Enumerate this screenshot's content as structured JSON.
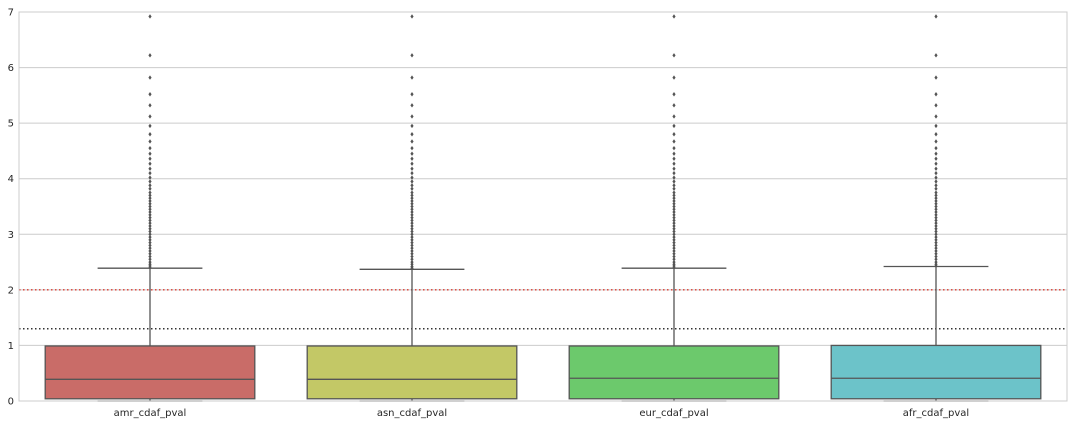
{
  "chart_data": {
    "type": "box",
    "categories": [
      "amr_cdaf_pval",
      "asn_cdaf_pval",
      "eur_cdaf_pval",
      "afr_cdaf_pval"
    ],
    "boxes": [
      {
        "name": "amr_cdaf_pval",
        "color": "#c96c68",
        "min": 0.0,
        "q1": 0.04,
        "median": 0.39,
        "q3": 0.99,
        "whisker_high": 2.39,
        "outliers": [
          2.4,
          2.43,
          2.46,
          2.5,
          2.55,
          2.6,
          2.65,
          2.7,
          2.75,
          2.8,
          2.85,
          2.9,
          2.95,
          3.0,
          3.05,
          3.1,
          3.15,
          3.2,
          3.25,
          3.3,
          3.35,
          3.4,
          3.45,
          3.5,
          3.55,
          3.6,
          3.65,
          3.7,
          3.75,
          3.82,
          3.88,
          3.95,
          4.02,
          4.1,
          4.18,
          4.27,
          4.36,
          4.45,
          4.55,
          4.67,
          4.8,
          4.95,
          5.12,
          5.32,
          5.52,
          5.82,
          6.22,
          6.92
        ]
      },
      {
        "name": "asn_cdaf_pval",
        "color": "#c3c866",
        "min": 0.0,
        "q1": 0.04,
        "median": 0.39,
        "q3": 0.99,
        "whisker_high": 2.37,
        "outliers": [
          2.39,
          2.42,
          2.46,
          2.5,
          2.55,
          2.6,
          2.65,
          2.7,
          2.75,
          2.8,
          2.85,
          2.9,
          2.95,
          3.0,
          3.05,
          3.1,
          3.15,
          3.2,
          3.25,
          3.3,
          3.35,
          3.4,
          3.45,
          3.5,
          3.55,
          3.6,
          3.65,
          3.7,
          3.75,
          3.82,
          3.88,
          3.95,
          4.02,
          4.1,
          4.18,
          4.27,
          4.36,
          4.45,
          4.55,
          4.67,
          4.8,
          4.95,
          5.12,
          5.32,
          5.52,
          5.82,
          6.22,
          6.92
        ]
      },
      {
        "name": "eur_cdaf_pval",
        "color": "#6cc96c",
        "min": 0.0,
        "q1": 0.04,
        "median": 0.41,
        "q3": 0.99,
        "whisker_high": 2.39,
        "outliers": [
          2.4,
          2.43,
          2.46,
          2.5,
          2.55,
          2.6,
          2.65,
          2.7,
          2.75,
          2.8,
          2.85,
          2.9,
          2.95,
          3.0,
          3.05,
          3.1,
          3.15,
          3.2,
          3.25,
          3.3,
          3.35,
          3.4,
          3.45,
          3.5,
          3.55,
          3.6,
          3.65,
          3.7,
          3.75,
          3.82,
          3.88,
          3.95,
          4.02,
          4.1,
          4.18,
          4.27,
          4.36,
          4.45,
          4.55,
          4.67,
          4.8,
          4.95,
          5.12,
          5.32,
          5.52,
          5.82,
          6.22,
          6.92
        ]
      },
      {
        "name": "afr_cdaf_pval",
        "color": "#6cc3c9",
        "min": 0.0,
        "q1": 0.04,
        "median": 0.41,
        "q3": 1.0,
        "whisker_high": 2.42,
        "outliers": [
          2.43,
          2.46,
          2.5,
          2.55,
          2.6,
          2.65,
          2.7,
          2.75,
          2.8,
          2.85,
          2.9,
          2.95,
          3.0,
          3.05,
          3.1,
          3.15,
          3.2,
          3.25,
          3.3,
          3.35,
          3.4,
          3.45,
          3.5,
          3.55,
          3.6,
          3.65,
          3.7,
          3.75,
          3.82,
          3.88,
          3.95,
          4.02,
          4.1,
          4.18,
          4.27,
          4.36,
          4.45,
          4.55,
          4.67,
          4.8,
          4.95,
          5.12,
          5.32,
          5.52,
          5.82,
          6.22,
          6.92
        ]
      }
    ],
    "reference_lines": [
      {
        "y": 2.0,
        "color": "#d9382f",
        "style": "dotted"
      },
      {
        "y": 1.3,
        "color": "#333333",
        "style": "dotted"
      }
    ],
    "ylim": [
      0,
      7
    ],
    "yticks": [
      "0",
      "1",
      "2",
      "3",
      "4",
      "5",
      "6",
      "7"
    ],
    "xlabel": "",
    "ylabel": "",
    "grid": true,
    "legend": false,
    "line_color": "#555555",
    "axes_edge_color": "#cccccc",
    "grid_color": "#cccccc"
  }
}
